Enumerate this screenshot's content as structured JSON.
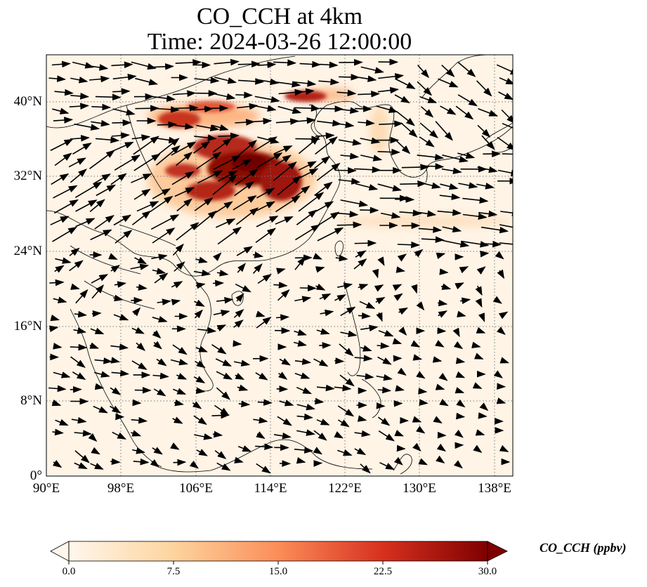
{
  "title": {
    "line1": "CO_CCH at 4km",
    "line2": "Time: 2024-03-26 12:00:00"
  },
  "map": {
    "lon_range": [
      90,
      140
    ],
    "lat_range": [
      0,
      45
    ],
    "lat_ticks": [
      {
        "value": 0,
        "label": "0°"
      },
      {
        "value": 8,
        "label": "8°N"
      },
      {
        "value": 16,
        "label": "16°N"
      },
      {
        "value": 24,
        "label": "24°N"
      },
      {
        "value": 32,
        "label": "32°N"
      },
      {
        "value": 40,
        "label": "40°N"
      }
    ],
    "lon_ticks": [
      {
        "value": 90,
        "label": "90°E"
      },
      {
        "value": 98,
        "label": "98°E"
      },
      {
        "value": 106,
        "label": "106°E"
      },
      {
        "value": 114,
        "label": "114°E"
      },
      {
        "value": 122,
        "label": "122°E"
      },
      {
        "value": 130,
        "label": "130°E"
      },
      {
        "value": 138,
        "label": "138°E"
      }
    ],
    "gridlines": true,
    "wind_vectors": true
  },
  "colorbar": {
    "label": "CO_CCH (ppbv)",
    "cmap": "OrRd",
    "range": [
      0,
      30
    ],
    "ticks": [
      "0.0",
      "7.5",
      "15.0",
      "22.5",
      "30.0"
    ],
    "extend": "both",
    "colors": [
      "#fff7ec",
      "#fdd49e",
      "#fc8d59",
      "#d7301f",
      "#7f0000"
    ]
  }
}
